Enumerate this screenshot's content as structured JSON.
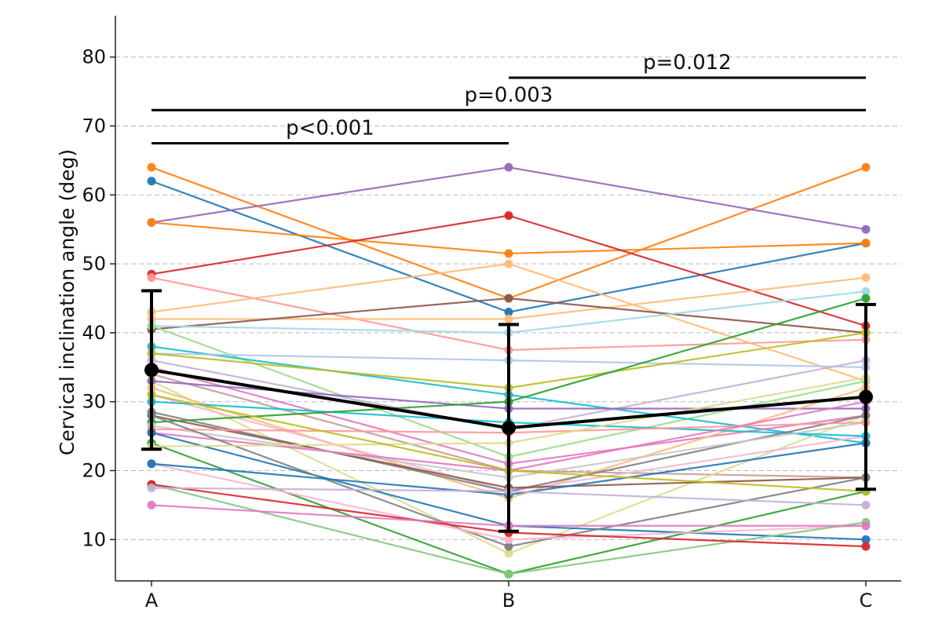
{
  "chart_data": {
    "type": "line",
    "title": "",
    "xlabel": "",
    "ylabel": "Cervical inclination angle (deg)",
    "categories": [
      "A",
      "B",
      "C"
    ],
    "ylim": [
      4,
      86
    ],
    "yticks": [
      10,
      20,
      30,
      40,
      50,
      60,
      70,
      80
    ],
    "grid": "horizontal-dashed",
    "legend": "none",
    "series": [
      {
        "color": "#ff7f0e",
        "values": [
          64,
          45,
          64
        ]
      },
      {
        "color": "#1f77b4",
        "values": [
          62,
          43,
          53
        ]
      },
      {
        "color": "#9467bd",
        "values": [
          56,
          64,
          55
        ]
      },
      {
        "color": "#ff7f0e",
        "values": [
          56,
          51.5,
          53
        ]
      },
      {
        "color": "#d62728",
        "values": [
          48.5,
          57,
          41
        ]
      },
      {
        "color": "#ff9896",
        "values": [
          48,
          37.5,
          39
        ]
      },
      {
        "color": "#ffbb78",
        "values": [
          43,
          50,
          33
        ]
      },
      {
        "color": "#ffbb78",
        "values": [
          42,
          42,
          48
        ]
      },
      {
        "color": "#8c564b",
        "values": [
          40.5,
          45,
          40
        ]
      },
      {
        "color": "#9edae5",
        "values": [
          41,
          40,
          46
        ]
      },
      {
        "color": "#98df8a",
        "values": [
          41,
          22,
          33
        ]
      },
      {
        "color": "#17becf",
        "values": [
          38,
          31,
          24
        ]
      },
      {
        "color": "#aec7e8",
        "values": [
          37,
          36,
          35
        ]
      },
      {
        "color": "#bcbd22",
        "values": [
          37,
          32,
          40
        ]
      },
      {
        "color": "#c5b0d5",
        "values": [
          36,
          26,
          36
        ]
      },
      {
        "color": "#e377c2",
        "values": [
          35,
          21,
          28
        ]
      },
      {
        "color": "#c49c94",
        "values": [
          34,
          20,
          19
        ]
      },
      {
        "color": "#dbdb8d",
        "values": [
          33,
          8,
          28
        ]
      },
      {
        "color": "#9467bd",
        "values": [
          33,
          29,
          29
        ]
      },
      {
        "color": "#ffbb78",
        "values": [
          32,
          16,
          32
        ]
      },
      {
        "color": "#f7b6d2",
        "values": [
          31,
          17,
          25
        ]
      },
      {
        "color": "#17becf",
        "values": [
          30,
          27,
          25
        ]
      },
      {
        "color": "#7f7f7f",
        "values": [
          28.5,
          17,
          28
        ]
      },
      {
        "color": "#8c564b",
        "values": [
          28,
          17.5,
          19
        ]
      },
      {
        "color": "#2ca02c",
        "values": [
          27,
          30,
          45
        ]
      },
      {
        "color": "#c7c7c7",
        "values": [
          26.5,
          19,
          27
        ]
      },
      {
        "color": "#ff9896",
        "values": [
          26,
          25.5,
          27
        ]
      },
      {
        "color": "#e377c2",
        "values": [
          25.5,
          20,
          30
        ]
      },
      {
        "color": "#1f77b4",
        "values": [
          25.5,
          12,
          10
        ]
      },
      {
        "color": "#7f7f7f",
        "values": [
          28,
          9,
          19
        ]
      },
      {
        "color": "#2ca02c",
        "values": [
          24,
          5,
          17
        ]
      },
      {
        "color": "#dbdb8d",
        "values": [
          23.5,
          24,
          33.5
        ]
      },
      {
        "color": "#f7b6d2",
        "values": [
          21,
          10,
          12
        ]
      },
      {
        "color": "#1f77b4",
        "values": [
          21,
          16.5,
          24
        ]
      },
      {
        "color": "#7fc97f",
        "values": [
          18,
          5,
          12.5
        ]
      },
      {
        "color": "#d62728",
        "values": [
          18,
          11,
          9
        ]
      },
      {
        "color": "#e377c2",
        "values": [
          15,
          12,
          12
        ]
      },
      {
        "color": "#c5b0d5",
        "values": [
          17.5,
          17,
          15
        ]
      },
      {
        "color": "#bcbd22",
        "values": [
          31,
          20,
          17
        ]
      }
    ],
    "mean": {
      "values": [
        34.6,
        26.2,
        30.7
      ],
      "sd": [
        11.5,
        15.0,
        13.4
      ]
    },
    "significance": [
      {
        "label": "p<0.001",
        "from": "A",
        "to": "B",
        "y": 67.5
      },
      {
        "label": "p=0.003",
        "from": "A",
        "to": "C",
        "y": 72.3
      },
      {
        "label": "p=0.012",
        "from": "B",
        "to": "C",
        "y": 77
      }
    ]
  }
}
